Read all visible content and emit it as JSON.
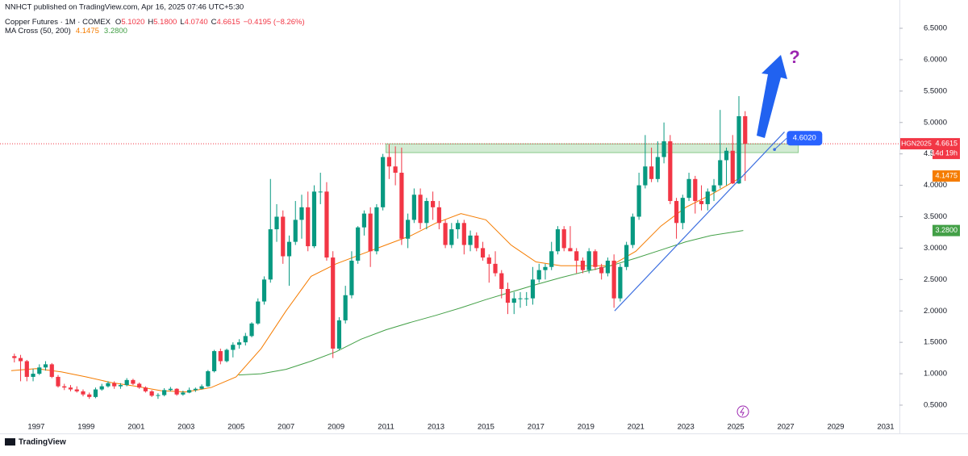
{
  "header": {
    "published": "NNHCT published on TradingView.com, Apr 16, 2025 07:46 UTC+5:30",
    "symbol": "Copper Futures · 1M · COMEX",
    "ohlc": [
      {
        "k": "O",
        "v": "5.1020"
      },
      {
        "k": "H",
        "v": "5.1800"
      },
      {
        "k": "L",
        "v": "4.0740"
      },
      {
        "k": "C",
        "v": "4.6615"
      }
    ],
    "change": "−0.4195 (−8.26%)",
    "indicator": "MA Cross (50, 200)",
    "indicator_values": [
      {
        "v": "4.1475",
        "color": "#f57c00"
      },
      {
        "v": "3.2800",
        "color": "#43a047"
      }
    ]
  },
  "footer": "TradingView",
  "chart_data": {
    "type": "candlestick",
    "title": "Copper Futures · 1M · COMEX",
    "up_color": "#089981",
    "down_color": "#f23645",
    "xlim": [
      1995.55,
      2031.55
    ],
    "xticks": [
      1997,
      1999,
      2001,
      2003,
      2005,
      2007,
      2009,
      2011,
      2013,
      2015,
      2017,
      2019,
      2021,
      2023,
      2025,
      2027,
      2029,
      2031
    ],
    "ylim": [
      0.14,
      6.95
    ],
    "yticks": [
      {
        "value": 0.5,
        "label": "0.5000"
      },
      {
        "value": 1,
        "label": "1.0000"
      },
      {
        "value": 1.5,
        "label": "1.5000"
      },
      {
        "value": 2,
        "label": "2.0000"
      },
      {
        "value": 2.5,
        "label": "2.5000"
      },
      {
        "value": 3,
        "label": "3.0000"
      },
      {
        "value": 3.5,
        "label": "3.5000"
      },
      {
        "value": 4,
        "label": "4.0000"
      },
      {
        "value": 4.5,
        "label": "4.5000"
      },
      {
        "value": 5,
        "label": "5.0000"
      },
      {
        "value": 5.5,
        "label": "5.5000"
      },
      {
        "value": 6,
        "label": "6.0000"
      },
      {
        "value": 6.5,
        "label": "6.5000"
      }
    ],
    "x": [
      1996.125,
      1996.375,
      1996.625,
      1996.875,
      1997.125,
      1997.375,
      1997.625,
      1997.875,
      1998.125,
      1998.375,
      1998.625,
      1998.875,
      1999.125,
      1999.375,
      1999.625,
      1999.875,
      2000.125,
      2000.375,
      2000.625,
      2000.875,
      2001.125,
      2001.375,
      2001.625,
      2001.875,
      2002.125,
      2002.375,
      2002.625,
      2002.875,
      2003.125,
      2003.375,
      2003.625,
      2003.875,
      2004.125,
      2004.375,
      2004.625,
      2004.875,
      2005.125,
      2005.375,
      2005.625,
      2005.875,
      2006.125,
      2006.375,
      2006.625,
      2006.875,
      2007.125,
      2007.375,
      2007.625,
      2007.875,
      2008.125,
      2008.375,
      2008.625,
      2008.875,
      2009.125,
      2009.375,
      2009.625,
      2009.875,
      2010.125,
      2010.375,
      2010.625,
      2010.875,
      2011.125,
      2011.375,
      2011.625,
      2011.875,
      2012.125,
      2012.375,
      2012.625,
      2012.875,
      2013.125,
      2013.375,
      2013.625,
      2013.875,
      2014.125,
      2014.375,
      2014.625,
      2014.875,
      2015.125,
      2015.375,
      2015.625,
      2015.875,
      2016.125,
      2016.375,
      2016.625,
      2016.875,
      2017.125,
      2017.375,
      2017.625,
      2017.875,
      2018.125,
      2018.375,
      2018.625,
      2018.875,
      2019.125,
      2019.375,
      2019.625,
      2019.875,
      2020.125,
      2020.375,
      2020.625,
      2020.875,
      2021.125,
      2021.375,
      2021.625,
      2021.875,
      2022.125,
      2022.375,
      2022.625,
      2022.875,
      2023.125,
      2023.375,
      2023.625,
      2023.875,
      2024.125,
      2024.375,
      2024.625,
      2024.875,
      2025.125,
      2025.375
    ],
    "ohlc": [
      [
        1.28,
        1.32,
        1.18,
        1.25
      ],
      [
        1.25,
        1.3,
        0.88,
        1.2
      ],
      [
        1.2,
        1.22,
        0.88,
        0.95
      ],
      [
        0.95,
        1.08,
        0.88,
        1.0
      ],
      [
        1.0,
        1.15,
        0.98,
        1.1
      ],
      [
        1.1,
        1.2,
        1.05,
        1.15
      ],
      [
        1.15,
        1.17,
        0.93,
        0.95
      ],
      [
        0.95,
        0.98,
        0.78,
        0.8
      ],
      [
        0.8,
        0.84,
        0.74,
        0.78
      ],
      [
        0.78,
        0.82,
        0.72,
        0.75
      ],
      [
        0.75,
        0.8,
        0.7,
        0.72
      ],
      [
        0.72,
        0.75,
        0.64,
        0.67
      ],
      [
        0.67,
        0.7,
        0.6,
        0.63
      ],
      [
        0.63,
        0.78,
        0.61,
        0.75
      ],
      [
        0.75,
        0.84,
        0.73,
        0.8
      ],
      [
        0.8,
        0.88,
        0.78,
        0.85
      ],
      [
        0.85,
        0.88,
        0.76,
        0.8
      ],
      [
        0.8,
        0.85,
        0.76,
        0.82
      ],
      [
        0.82,
        0.93,
        0.8,
        0.9
      ],
      [
        0.9,
        0.92,
        0.82,
        0.84
      ],
      [
        0.84,
        0.86,
        0.76,
        0.78
      ],
      [
        0.78,
        0.8,
        0.7,
        0.72
      ],
      [
        0.72,
        0.74,
        0.63,
        0.65
      ],
      [
        0.65,
        0.69,
        0.6,
        0.66
      ],
      [
        0.66,
        0.77,
        0.64,
        0.74
      ],
      [
        0.74,
        0.79,
        0.72,
        0.76
      ],
      [
        0.76,
        0.77,
        0.65,
        0.67
      ],
      [
        0.67,
        0.73,
        0.65,
        0.7
      ],
      [
        0.7,
        0.78,
        0.69,
        0.74
      ],
      [
        0.74,
        0.78,
        0.71,
        0.76
      ],
      [
        0.76,
        0.83,
        0.75,
        0.8
      ],
      [
        0.8,
        1.06,
        0.79,
        1.04
      ],
      [
        1.04,
        1.38,
        1.02,
        1.36
      ],
      [
        1.36,
        1.4,
        1.15,
        1.2
      ],
      [
        1.2,
        1.4,
        1.18,
        1.38
      ],
      [
        1.38,
        1.5,
        1.26,
        1.46
      ],
      [
        1.46,
        1.55,
        1.4,
        1.5
      ],
      [
        1.5,
        1.65,
        1.45,
        1.6
      ],
      [
        1.6,
        1.82,
        1.58,
        1.8
      ],
      [
        1.8,
        2.2,
        1.78,
        2.15
      ],
      [
        2.15,
        2.55,
        2.1,
        2.5
      ],
      [
        2.5,
        4.1,
        2.45,
        3.3
      ],
      [
        3.3,
        3.7,
        3.1,
        3.5
      ],
      [
        3.5,
        3.6,
        2.75,
        2.87
      ],
      [
        2.87,
        3.2,
        2.4,
        3.1
      ],
      [
        3.1,
        3.75,
        3.05,
        3.45
      ],
      [
        3.45,
        3.85,
        3.15,
        3.65
      ],
      [
        3.65,
        3.9,
        2.95,
        3.03
      ],
      [
        3.03,
        4.0,
        3.0,
        3.9
      ],
      [
        3.9,
        4.2,
        3.7,
        3.9
      ],
      [
        3.9,
        4.05,
        2.8,
        2.85
      ],
      [
        2.85,
        2.95,
        1.25,
        1.4
      ],
      [
        1.4,
        1.9,
        1.38,
        1.85
      ],
      [
        1.85,
        2.4,
        1.8,
        2.25
      ],
      [
        2.25,
        2.95,
        2.2,
        2.8
      ],
      [
        2.8,
        3.35,
        2.75,
        3.33
      ],
      [
        3.33,
        3.6,
        3.2,
        3.55
      ],
      [
        3.55,
        3.65,
        2.7,
        2.95
      ],
      [
        2.95,
        3.7,
        2.9,
        3.65
      ],
      [
        3.65,
        4.5,
        3.6,
        4.45
      ],
      [
        4.45,
        4.65,
        4.1,
        4.3
      ],
      [
        4.3,
        4.62,
        4.0,
        4.2
      ],
      [
        4.2,
        4.6,
        3.05,
        3.15
      ],
      [
        3.15,
        3.55,
        3.0,
        3.45
      ],
      [
        3.45,
        3.95,
        3.4,
        3.85
      ],
      [
        3.85,
        3.95,
        3.3,
        3.4
      ],
      [
        3.4,
        3.8,
        3.3,
        3.75
      ],
      [
        3.75,
        3.9,
        3.45,
        3.65
      ],
      [
        3.65,
        3.75,
        3.3,
        3.4
      ],
      [
        3.4,
        3.45,
        3.0,
        3.05
      ],
      [
        3.05,
        3.4,
        3.0,
        3.3
      ],
      [
        3.3,
        3.45,
        3.15,
        3.4
      ],
      [
        3.4,
        3.45,
        2.9,
        3.05
      ],
      [
        3.05,
        3.28,
        2.95,
        3.2
      ],
      [
        3.2,
        3.25,
        2.95,
        3.0
      ],
      [
        3.0,
        3.1,
        2.8,
        2.85
      ],
      [
        2.85,
        2.9,
        2.45,
        2.75
      ],
      [
        2.75,
        2.95,
        2.55,
        2.6
      ],
      [
        2.6,
        2.65,
        2.2,
        2.35
      ],
      [
        2.35,
        2.45,
        1.95,
        2.13
      ],
      [
        2.13,
        2.3,
        1.95,
        2.2
      ],
      [
        2.2,
        2.3,
        2.05,
        2.2
      ],
      [
        2.2,
        2.3,
        2.08,
        2.2
      ],
      [
        2.2,
        2.7,
        2.1,
        2.5
      ],
      [
        2.5,
        2.75,
        2.45,
        2.65
      ],
      [
        2.65,
        2.75,
        2.5,
        2.7
      ],
      [
        2.7,
        3.1,
        2.65,
        2.95
      ],
      [
        2.95,
        3.35,
        2.9,
        3.3
      ],
      [
        3.3,
        3.35,
        2.95,
        3.0
      ],
      [
        3.0,
        3.35,
        2.95,
        2.95
      ],
      [
        2.95,
        3.0,
        2.6,
        2.8
      ],
      [
        2.8,
        2.85,
        2.6,
        2.65
      ],
      [
        2.65,
        3.0,
        2.6,
        2.95
      ],
      [
        2.95,
        2.98,
        2.65,
        2.7
      ],
      [
        2.7,
        2.75,
        2.5,
        2.6
      ],
      [
        2.6,
        2.85,
        2.55,
        2.8
      ],
      [
        2.8,
        2.9,
        2.05,
        2.2
      ],
      [
        2.2,
        2.75,
        2.15,
        2.7
      ],
      [
        2.7,
        3.1,
        2.65,
        3.05
      ],
      [
        3.05,
        3.55,
        3.0,
        3.5
      ],
      [
        3.5,
        4.2,
        3.45,
        4.0
      ],
      [
        4.0,
        4.8,
        3.95,
        4.3
      ],
      [
        4.3,
        4.6,
        4.05,
        4.1
      ],
      [
        4.1,
        4.7,
        4.05,
        4.45
      ],
      [
        4.45,
        5.0,
        4.35,
        4.7
      ],
      [
        4.7,
        4.8,
        3.7,
        3.75
      ],
      [
        3.75,
        3.8,
        3.15,
        3.4
      ],
      [
        3.4,
        3.85,
        3.3,
        3.8
      ],
      [
        3.8,
        4.2,
        3.75,
        4.1
      ],
      [
        4.1,
        4.15,
        3.55,
        3.75
      ],
      [
        3.75,
        4.0,
        3.6,
        3.7
      ],
      [
        3.7,
        3.95,
        3.6,
        3.9
      ],
      [
        3.9,
        4.1,
        3.75,
        4.0
      ],
      [
        4.0,
        5.2,
        3.95,
        4.4
      ],
      [
        4.4,
        4.6,
        4.0,
        4.55
      ],
      [
        4.55,
        4.8,
        4.02,
        4.03
      ],
      [
        4.03,
        5.42,
        4.02,
        5.1
      ],
      [
        5.1,
        5.18,
        4.07,
        4.6615
      ]
    ],
    "overlays": [
      {
        "color": "#f57c00",
        "x": [
          1996,
          1997,
          1998,
          1999,
          2000,
          2001,
          2002,
          2003,
          2004,
          2005,
          2006,
          2007,
          2008,
          2009,
          2010,
          2011,
          2012,
          2013,
          2014,
          2015,
          2016,
          2017,
          2018,
          2019,
          2020,
          2021,
          2022,
          2023,
          2024,
          2025.3
        ],
        "values": [
          1.05,
          1.08,
          1.03,
          0.95,
          0.86,
          0.8,
          0.73,
          0.71,
          0.78,
          0.95,
          1.4,
          2.0,
          2.55,
          2.75,
          2.9,
          3.05,
          3.2,
          3.4,
          3.55,
          3.45,
          3.05,
          2.78,
          2.72,
          2.72,
          2.72,
          2.95,
          3.35,
          3.65,
          3.85,
          4.1475
        ]
      },
      {
        "color": "#43a047",
        "x": [
          2005.1,
          2006,
          2007,
          2008,
          2009,
          2010,
          2011,
          2012,
          2013,
          2014,
          2015,
          2016,
          2017,
          2018,
          2019,
          2020,
          2021,
          2022,
          2023,
          2024,
          2025.3
        ],
        "values": [
          0.98,
          1.0,
          1.07,
          1.2,
          1.35,
          1.55,
          1.7,
          1.82,
          1.93,
          2.05,
          2.18,
          2.3,
          2.42,
          2.53,
          2.63,
          2.72,
          2.84,
          2.97,
          3.1,
          3.2,
          3.28
        ]
      }
    ],
    "last_price_line": 4.6615,
    "zone": {
      "x": [
        2011.0,
        2027.5
      ],
      "y": [
        4.52,
        4.66
      ],
      "color": "#4caf50"
    },
    "trendline": {
      "color": "#3d6fe0",
      "x": [
        2020.15,
        2026.95
      ],
      "values": [
        2.0,
        4.85
      ]
    },
    "callout": {
      "label": "4.6020",
      "x": [
        2026.55,
        2027.75
      ],
      "values": [
        4.57,
        4.75
      ]
    },
    "question": "?",
    "price_tags": [
      {
        "value": 4.6615,
        "label": "4.6615",
        "symbol": "HGN2025",
        "countdown": "14d 19h",
        "color": "#f23645"
      },
      {
        "value": 4.1475,
        "label": "4.1475",
        "color": "#f57c00"
      },
      {
        "value": 3.28,
        "label": "3.2800",
        "color": "#43a047"
      }
    ]
  }
}
